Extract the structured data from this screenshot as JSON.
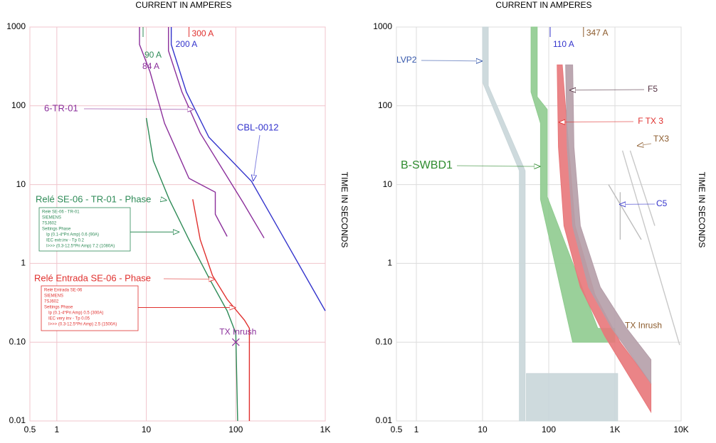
{
  "chart_data": [
    {
      "type": "line",
      "x_label": "CURRENT IN AMPERES",
      "y_label": "TIME IN SECONDS",
      "xscale": "log",
      "yscale": "log",
      "grid": true,
      "grid_color": "#f0c4cc",
      "xlim": [
        0.5,
        1000
      ],
      "ylim": [
        0.01,
        1000
      ],
      "xticks": [
        0.5,
        1,
        10,
        100,
        {
          "value": 1000,
          "label": "1K"
        }
      ],
      "yticks": [
        0.01,
        {
          "value": 0.1,
          "label": "0.10"
        },
        1,
        10,
        100,
        1000
      ],
      "series": [
        {
          "name": "6-TR-01",
          "color": "#8b2f9b",
          "kind": "line",
          "label_at": [
            34,
            90
          ],
          "x": [
            8.4,
            8.4,
            11,
            16,
            30,
            59,
            59,
            80,
            null,
            17.7,
            17.7,
            25,
            40,
            120,
            207
          ],
          "y": [
            1000,
            600,
            270,
            60,
            12,
            8,
            4.2,
            2.2,
            null,
            1000,
            500,
            150,
            45,
            6,
            2.1
          ]
        },
        {
          "name": "CBL-0012",
          "color": "#3333cc",
          "kind": "line",
          "label_at": [
            156,
            11
          ],
          "x": [
            19,
            19,
            28,
            50,
            150,
            1000
          ],
          "y": [
            1000,
            600,
            150,
            40,
            11,
            0.25
          ]
        },
        {
          "name": "Relé Entrada SE-06 - Phase",
          "color": "#e0302e",
          "kind": "line",
          "label_at": [
            59,
            0.63
          ],
          "x": [
            33,
            40,
            55,
            80,
            125,
            142,
            142
          ],
          "y": [
            6.5,
            2,
            0.7,
            0.35,
            0.19,
            0.15,
            0.01
          ]
        },
        {
          "name": "Relé SE-06 - TR-01 - Phase",
          "color": "#2e8b57",
          "kind": "line",
          "label_at": [
            17,
            6.3
          ],
          "x": [
            10,
            12,
            18,
            30,
            50,
            80,
            100,
            105
          ],
          "y": [
            70,
            20,
            6.5,
            2,
            0.66,
            0.25,
            0.13,
            0.01
          ]
        }
      ],
      "pickups": [
        {
          "text": "300 A",
          "x": 30,
          "color": "#e0302e"
        },
        {
          "text": "200 A",
          "x": 19,
          "color": "#3333cc"
        },
        {
          "text": "90 A",
          "x": 9.2,
          "color": "#2e8b57"
        },
        {
          "text": "84 A",
          "x": 8.4,
          "color": "#8b2f9b"
        }
      ],
      "boxes": [
        {
          "color": "#2e8b57",
          "x": 23.5,
          "y": 2.5,
          "lines": [
            "Relé SE-06 - TR-01",
            "SIEMENS",
            "7SJ602",
            "Settings Phase",
            "Ip (0.1-4*Pri Amp) 0.6 (90A)",
            "IEC extr.inv - Tp 0.2",
            "I>>> (0.3-12.5*Pri Amp) 7.2 (1080A)"
          ]
        },
        {
          "color": "#e0302e",
          "x": 100,
          "y": 0.275,
          "lines": [
            "Relé Entrada SE-06",
            "SIEMENS",
            "7SJ602",
            "Settings Phase",
            "Ip (0.1-4*Pri Amp) 0.5 (300A)",
            "IEC very inv - Tp 0.05",
            "I>>> (0.3-12.5*Pri Amp) 2.5 (1500A)"
          ]
        }
      ],
      "notes": [
        {
          "text": "TX Inrush",
          "x": 100,
          "y": 0.1,
          "color": "#8b2f9b",
          "marker": "x"
        }
      ]
    },
    {
      "type": "line",
      "x_label": "CURRENT IN AMPERES",
      "y_label": "TIME IN SECONDS",
      "xscale": "log",
      "yscale": "log",
      "grid": true,
      "grid_color": "#dcdcdc",
      "xlim": [
        0.5,
        10000
      ],
      "ylim": [
        0.01,
        1000
      ],
      "xticks": [
        0.5,
        1,
        10,
        100,
        {
          "value": 1000,
          "label": "1K"
        },
        {
          "value": 10000,
          "label": "10K"
        }
      ],
      "yticks": [
        0.01,
        {
          "value": 0.1,
          "label": "0.10"
        },
        1,
        10,
        100,
        1000
      ],
      "series": [
        {
          "name": "LVP2",
          "color": "#3355aa",
          "fill": "#c9d6d9",
          "kind": "band",
          "label_at": [
            10,
            370
          ],
          "x": [
            10,
            12.2,
            12.2,
            44,
            44,
            36,
            36,
            10,
            null,
            46,
            1100,
            1100,
            46
          ],
          "y": [
            1000,
            1000,
            180,
            15,
            0.01,
            0.01,
            15,
            200,
            null,
            0.04,
            0.04,
            0.01,
            0.01
          ]
        },
        {
          "name": "B-SWBD1",
          "color": "#2e8b2e",
          "fill": "#8fcb8f",
          "kind": "band",
          "label_at": [
            75,
            17
          ],
          "x": [
            54,
            54,
            75,
            75,
            230,
            1000,
            1000,
            550,
            95,
            95,
            67,
            67
          ],
          "y": [
            1000,
            150,
            60,
            6.5,
            0.1,
            0.1,
            0.15,
            0.15,
            7,
            90,
            130,
            1000
          ]
        },
        {
          "name": "F TX 3",
          "color": "#e0302e",
          "fill": "#e8777a",
          "kind": "band",
          "label_at": [
            141,
            62
          ],
          "x": [
            134,
            140,
            170,
            300,
            700,
            3500,
            3500,
            1200,
            500,
            250,
            200,
            160
          ],
          "y": [
            330,
            30,
            3,
            0.5,
            0.12,
            0.013,
            0.03,
            0.1,
            0.4,
            3,
            30,
            330
          ]
        },
        {
          "name": "F5",
          "color": "#553344",
          "fill": "#b59ea9",
          "kind": "band",
          "label_at": [
            205,
            158
          ],
          "x": [
            180,
            190,
            230,
            400,
            900,
            3500,
            3500,
            1500,
            600,
            300,
            240,
            230
          ],
          "y": [
            330,
            30,
            3,
            0.5,
            0.15,
            0.03,
            0.06,
            0.15,
            0.5,
            3,
            30,
            330
          ]
        },
        {
          "name": "TX3",
          "color": "#8b5a2b",
          "kind": "line",
          "stroke": "#c8c8c8",
          "label_at": [
            2150,
            31
          ],
          "x": [
            1300,
            9500,
            null,
            1700,
            4000
          ],
          "y": [
            27,
            0.092,
            null,
            27,
            3
          ]
        },
        {
          "name": "C5",
          "color": "#3333cc",
          "kind": "line",
          "stroke": "#bdbdbd",
          "label_at": [
            1160,
            5.6
          ],
          "x": [
            800,
            2500,
            null,
            1200,
            1200
          ],
          "y": [
            10,
            2,
            null,
            8,
            2
          ]
        }
      ],
      "pickups": [
        {
          "text": "347 A",
          "x": 335,
          "color": "#8b5a2b"
        },
        {
          "text": "110 A",
          "x": 105,
          "color": "#3333cc"
        }
      ],
      "boxes": [],
      "notes": [
        {
          "text": "TX Inrush",
          "x": 1160,
          "y": 0.126,
          "color": "#8b5a2b",
          "marker": "none"
        }
      ]
    }
  ]
}
